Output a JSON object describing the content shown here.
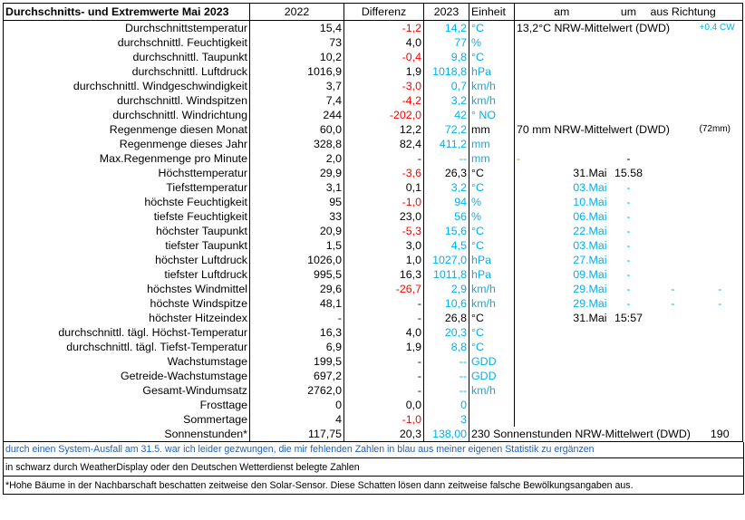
{
  "header": {
    "title": "Durchschnitts- und Extremwerte Mai 2023",
    "col_2022": "2022",
    "col_diff": "Differenz",
    "col_2023": "2023",
    "col_unit": "Einheit",
    "col_am": "am",
    "col_um": "um",
    "col_richtung": "aus Richtung"
  },
  "rows": [
    {
      "label": "Durchschnittstemperatur",
      "v2022": "15,4",
      "diff": "-1,2",
      "diff_color": "red",
      "v2023": "14,2",
      "v2023_color": "cyan",
      "unit": "°C",
      "unit_color": "cyan",
      "am": "13,2°C NRW-Mittelwert (DWD)",
      "am_mode": "span",
      "um": "",
      "richtung": "+0.4 CW",
      "richtung_color": "cyan"
    },
    {
      "label": "durchschnittl. Feuchtigkeit",
      "v2022": "73",
      "diff": "4,0",
      "diff_color": "black",
      "v2023": "77",
      "v2023_color": "cyan",
      "unit": "%",
      "unit_color": "cyan",
      "am": "",
      "um": "",
      "richtung": ""
    },
    {
      "label": "durchschnittl. Taupunkt",
      "v2022": "10,2",
      "diff": "-0,4",
      "diff_color": "red",
      "v2023": "9,8",
      "v2023_color": "cyan",
      "unit": "°C",
      "unit_color": "cyan",
      "am": "",
      "um": "",
      "richtung": ""
    },
    {
      "label": "durchschnittl. Luftdruck",
      "v2022": "1016,9",
      "diff": "1,9",
      "diff_color": "black",
      "v2023": "1018,8",
      "v2023_color": "cyan",
      "unit": "hPa",
      "unit_color": "cyan",
      "am": "",
      "um": "",
      "richtung": ""
    },
    {
      "label": "durchschnittl. Windgeschwindigkeit",
      "v2022": "3,7",
      "diff": "-3,0",
      "diff_color": "red",
      "v2023": "0,7",
      "v2023_color": "cyan",
      "unit": "km/h",
      "unit_color": "cyan",
      "am": "",
      "um": "",
      "richtung": ""
    },
    {
      "label": "durchschnittl. Windspitzen",
      "v2022": "7,4",
      "diff": "-4,2",
      "diff_color": "red",
      "v2023": "3,2",
      "v2023_color": "cyan",
      "unit": "km/h",
      "unit_color": "cyan",
      "am": "",
      "um": "",
      "richtung": ""
    },
    {
      "label": "durchschnittl. Windrichtung",
      "v2022": "244",
      "diff": "-202,0",
      "diff_color": "red",
      "v2023": "42",
      "v2023_color": "cyan",
      "unit": "°  NO",
      "unit_color": "cyan",
      "am": "",
      "um": "",
      "richtung": ""
    },
    {
      "label": "Regenmenge diesen Monat",
      "v2022": "60,0",
      "diff": "12,2",
      "diff_color": "black",
      "v2023": "72,2",
      "v2023_color": "cyan",
      "unit": "mm",
      "unit_color": "black",
      "am": "70 mm NRW-Mittelwert (DWD)",
      "am_mode": "span",
      "um": "",
      "richtung": "(72mm)",
      "richtung_color": "black"
    },
    {
      "label": "Regenmenge dieses Jahr",
      "v2022": "328,8",
      "diff": "82,4",
      "diff_color": "black",
      "v2023": "411,2",
      "v2023_color": "cyan",
      "unit": "mm",
      "unit_color": "cyan",
      "am": "",
      "um": "",
      "richtung": ""
    },
    {
      "label": "Max.Regenmenge pro Minute",
      "v2022": "2,0",
      "diff": "-",
      "diff_color": "black",
      "v2023": "--",
      "v2023_color": "cyan",
      "unit": "mm",
      "unit_color": "cyan",
      "am": "-",
      "am_mode": "olive",
      "um": "-",
      "richtung": ""
    },
    {
      "label": "Höchsttemperatur",
      "v2022": "29,9",
      "diff": "-3,6",
      "diff_color": "red",
      "v2023": "26,3",
      "v2023_color": "black",
      "unit": "°C",
      "unit_color": "black",
      "am": "31.Mai",
      "am_color": "black",
      "um": "15.58",
      "um_color": "black",
      "richtung": ""
    },
    {
      "label": "Tiefsttemperatur",
      "v2022": "3,1",
      "diff": "0,1",
      "diff_color": "black",
      "v2023": "3,2",
      "v2023_color": "cyan",
      "unit": "°C",
      "unit_color": "cyan",
      "am": "03.Mai",
      "am_color": "cyan",
      "um": "-",
      "um_color": "cyan",
      "richtung": ""
    },
    {
      "label": "höchste Feuchtigkeit",
      "v2022": "95",
      "diff": "-1,0",
      "diff_color": "red",
      "v2023": "94",
      "v2023_color": "cyan",
      "unit": "%",
      "unit_color": "cyan",
      "am": "10.Mai",
      "am_color": "cyan",
      "um": "-",
      "um_color": "cyan",
      "richtung": ""
    },
    {
      "label": "tiefste Feuchtigkeit",
      "v2022": "33",
      "diff": "23,0",
      "diff_color": "black",
      "v2023": "56",
      "v2023_color": "cyan",
      "unit": "%",
      "unit_color": "cyan",
      "am": "06.Mai",
      "am_color": "cyan",
      "um": "-",
      "um_color": "cyan",
      "richtung": ""
    },
    {
      "label": "höchster Taupunkt",
      "v2022": "20,9",
      "diff": "-5,3",
      "diff_color": "red",
      "v2023": "15,6",
      "v2023_color": "cyan",
      "unit": "°C",
      "unit_color": "cyan",
      "am": "22.Mai",
      "am_color": "cyan",
      "um": "-",
      "um_color": "cyan",
      "richtung": ""
    },
    {
      "label": "tiefster Taupunkt",
      "v2022": "1,5",
      "diff": "3,0",
      "diff_color": "black",
      "v2023": "4,5",
      "v2023_color": "cyan",
      "unit": "°C",
      "unit_color": "cyan",
      "am": "03.Mai",
      "am_color": "cyan",
      "um": "-",
      "um_color": "cyan",
      "richtung": ""
    },
    {
      "label": "höchster Luftdruck",
      "v2022": "1026,0",
      "diff": "1,0",
      "diff_color": "black",
      "v2023": "1027,0",
      "v2023_color": "cyan",
      "unit": "hPa",
      "unit_color": "cyan",
      "am": "27.Mai",
      "am_color": "cyan",
      "um": "-",
      "um_color": "cyan",
      "richtung": ""
    },
    {
      "label": "tiefster Luftdruck",
      "v2022": "995,5",
      "diff": "16,3",
      "diff_color": "black",
      "v2023": "1011,8",
      "v2023_color": "cyan",
      "unit": "hPa",
      "unit_color": "cyan",
      "am": "09.Mai",
      "am_color": "cyan",
      "um": "-",
      "um_color": "cyan",
      "richtung": ""
    },
    {
      "label": "höchstes Windmittel",
      "v2022": "29,6",
      "diff": "-26,7",
      "diff_color": "red",
      "v2023": "2,9",
      "v2023_color": "cyan",
      "unit": "km/h",
      "unit_color": "cyan",
      "am": "29.Mai",
      "am_color": "cyan",
      "um": "-",
      "um_color": "cyan",
      "richtung": "-",
      "richtung2": "-",
      "richtung_color": "cyan"
    },
    {
      "label": "höchste Windspitze",
      "v2022": "48,1",
      "diff": "-",
      "diff_color": "black",
      "v2023": "10,6",
      "v2023_color": "cyan",
      "unit": "km/h",
      "unit_color": "cyan",
      "am": "29.Mai",
      "am_color": "cyan",
      "um": "-",
      "um_color": "cyan",
      "richtung": "-",
      "richtung2": "-",
      "richtung_color": "cyan"
    },
    {
      "label": "höchster Hitzeindex",
      "v2022": "-",
      "diff": "-",
      "diff_color": "black",
      "v2023": "26,8",
      "v2023_color": "black",
      "unit": "°C",
      "unit_color": "black",
      "am": "31.Mai",
      "am_color": "black",
      "um": "15:57",
      "um_color": "black",
      "richtung": ""
    },
    {
      "label": "durchschnittl. tägl. Höchst-Temperatur",
      "v2022": "16,3",
      "diff": "4,0",
      "diff_color": "black",
      "v2023": "20,3",
      "v2023_color": "cyan",
      "unit": "°C",
      "unit_color": "cyan",
      "am": "",
      "um": "",
      "richtung": ""
    },
    {
      "label": "durchschnittl. tägl. Tiefst-Temperatur",
      "v2022": "6,9",
      "diff": "1,9",
      "diff_color": "black",
      "v2023": "8,8",
      "v2023_color": "cyan",
      "unit": "°C",
      "unit_color": "cyan",
      "am": "",
      "um": "",
      "richtung": ""
    },
    {
      "label": "Wachstumstage",
      "v2022": "199,5",
      "diff": "-",
      "diff_color": "black",
      "v2023": "--",
      "v2023_color": "cyan",
      "unit": "GDD",
      "unit_color": "cyan",
      "am": "",
      "um": "",
      "richtung": ""
    },
    {
      "label": "Getreide-Wachstumstage",
      "v2022": "697,2",
      "diff": "-",
      "diff_color": "black",
      "v2023": "--",
      "v2023_color": "cyan",
      "unit": "GDD",
      "unit_color": "cyan",
      "am": "",
      "um": "",
      "richtung": ""
    },
    {
      "label": "Gesamt-Windumsatz",
      "v2022": "2762,0",
      "diff": "-",
      "diff_color": "black",
      "v2023": "--",
      "v2023_color": "cyan",
      "unit": "km/h",
      "unit_color": "cyan",
      "am": "",
      "um": "",
      "richtung": ""
    },
    {
      "label": "Frosttage",
      "v2022": "0",
      "diff": "0,0",
      "diff_color": "black",
      "v2023": "0",
      "v2023_color": "cyan",
      "unit": "",
      "unit_color": "cyan",
      "am": "",
      "um": "",
      "richtung": ""
    },
    {
      "label": "Sommertage",
      "v2022": "4",
      "diff": "-1,0",
      "diff_color": "red",
      "v2023": "3",
      "v2023_color": "cyan",
      "unit": "",
      "unit_color": "cyan",
      "am": "",
      "um": "",
      "richtung": ""
    },
    {
      "label": "Sonnenstunden*",
      "v2022": "117,75",
      "diff": "20,3",
      "diff_color": "black",
      "v2023": "138,00",
      "v2023_color": "cyan",
      "unit": "230 Sonnenstunden NRW-Mittelwert (DWD)",
      "unit_mode": "span",
      "unit_color": "black",
      "am": "",
      "um": "",
      "richtung": "190",
      "richtung_color": "black"
    }
  ],
  "footer": {
    "line1": "durch einen System-Ausfall am 31.5. war ich leider gezwungen, die mir fehlenden Zahlen in blau aus meiner eigenen Statistik zu ergänzen",
    "line2": "in schwarz durch WeatherDisplay oder den Deutschen Wetterdienst belegte Zahlen",
    "line3": "*Hohe Bäume in der Nachbarschaft beschatten zeitweise den Solar-Sensor. Diese Schatten lösen dann zeitweise falsche Bewölkungsangaben aus."
  },
  "colors": {
    "red": "#ff0000",
    "cyan": "#00b0f0",
    "black": "#000000",
    "olive": "#c9a000",
    "footer_blue": "#1f5fbf"
  }
}
